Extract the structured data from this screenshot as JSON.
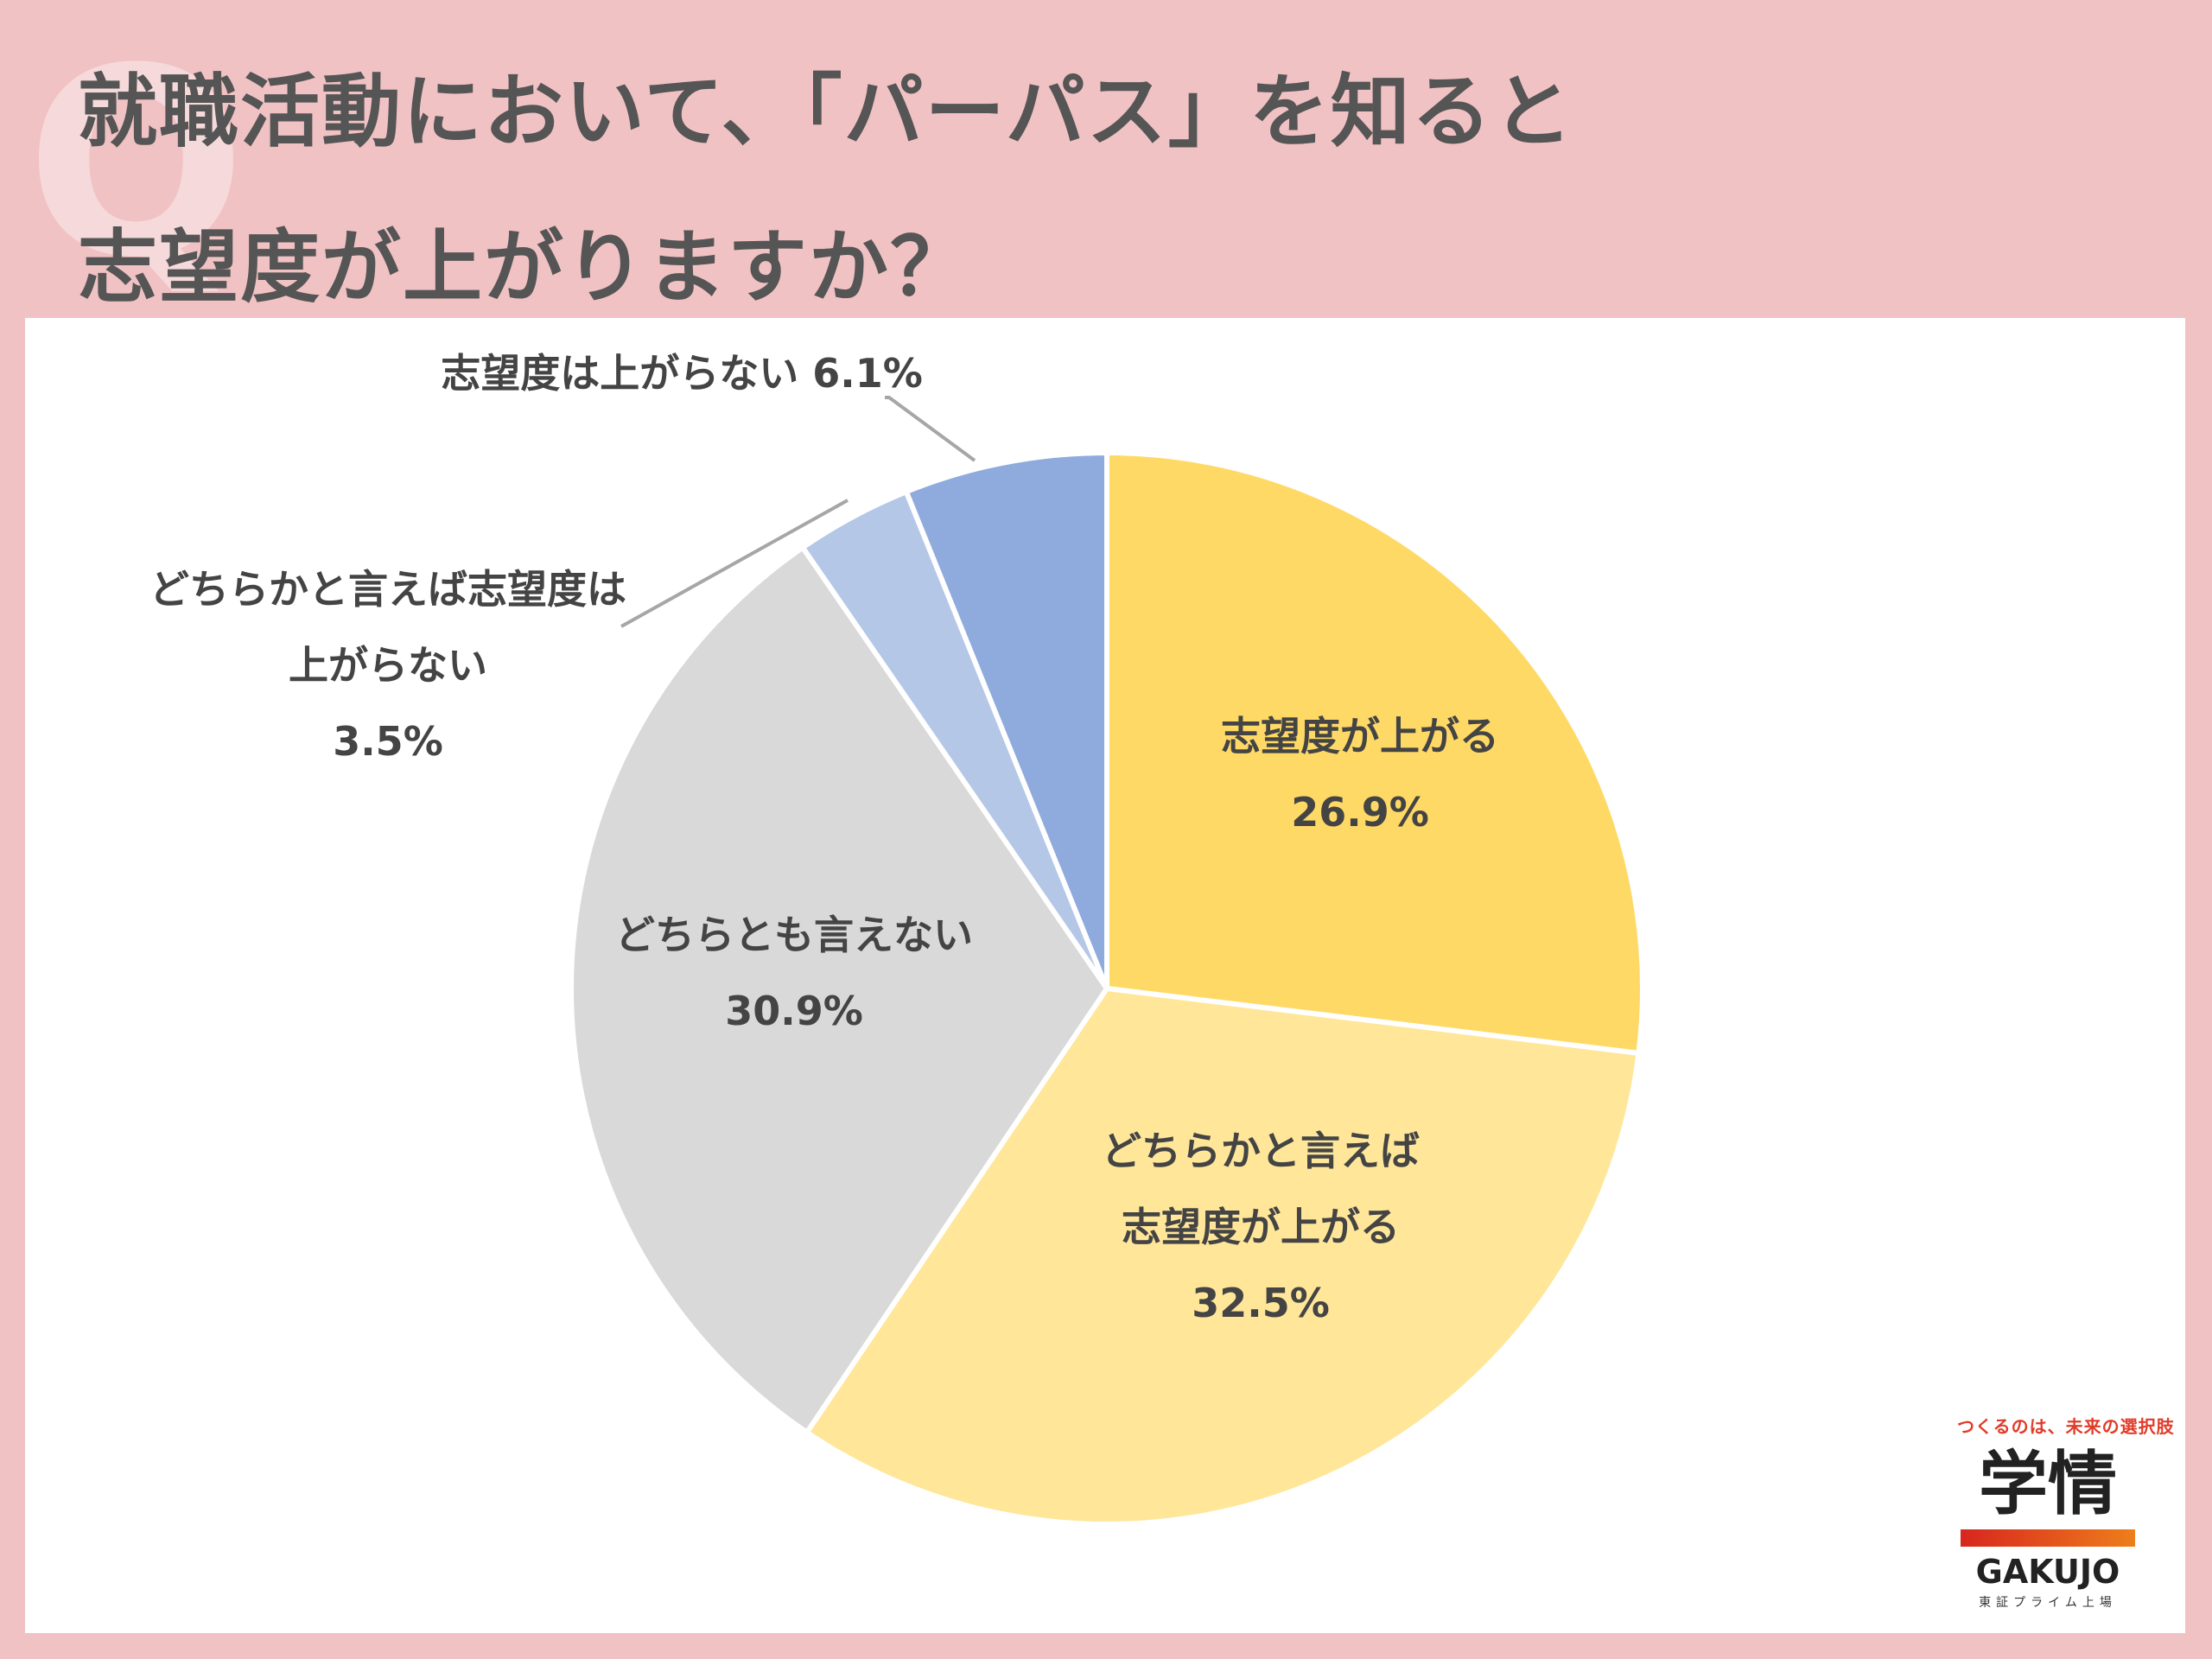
{
  "title": {
    "line1": "就職活動において、「パーパス」を知ると",
    "line2": "志望度が上がりますか？"
  },
  "chart_data": {
    "type": "pie",
    "title": "就職活動において、「パーパス」を知ると志望度が上がりますか？",
    "slices": [
      {
        "label": "志望度が上がる",
        "value": 26.9,
        "color": "#ffd966"
      },
      {
        "label": "どちらかと言えば志望度が上がる",
        "value": 32.5,
        "color": "#ffe699"
      },
      {
        "label": "どちらとも言えない",
        "value": 30.9,
        "color": "#d9d9d9"
      },
      {
        "label": "どちらかと言えば志望度は上がらない",
        "value": 3.5,
        "color": "#b4c7e7"
      },
      {
        "label": "志望度は上がらない",
        "value": 6.1,
        "color": "#8faadc"
      }
    ],
    "start_angle": "12 o'clock",
    "direction": "clockwise",
    "legend": "none"
  },
  "labels": {
    "s0": {
      "line1": "志望度が上がる",
      "line2": "26.9%"
    },
    "s1": {
      "line1": "どちらかと言えば",
      "line2": "志望度が上がる",
      "line3": "32.5%"
    },
    "s2": {
      "line1": "どちらとも言えない",
      "line2": "30.9%"
    },
    "s3": {
      "line1": "どちらかと言えば志望度は",
      "line2": "上がらない",
      "line3": "3.5%"
    },
    "s4": {
      "line1": "志望度は上がらない 6.1%"
    }
  },
  "logo": {
    "tagline": "つくるのは、未来の選択肢",
    "name": "学情",
    "latin": "GAKUJO",
    "sub": "東証プライム上場",
    "colors": [
      "#d7261e",
      "#ee7e1b"
    ]
  }
}
